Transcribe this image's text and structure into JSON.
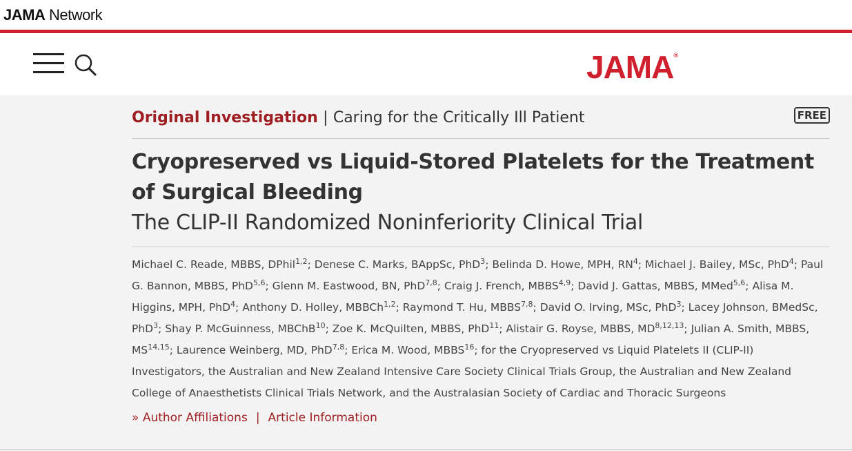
{
  "network_logo": {
    "bold": "JAMA",
    "rest": "Network"
  },
  "brand_logo": {
    "text": "JAMA",
    "mark": "®"
  },
  "article_type": {
    "section": "Original Investigation",
    "separator": "|",
    "collection": "Caring for the Critically Ill Patient",
    "badge": "FREE"
  },
  "title": "Cryopreserved vs Liquid-Stored Platelets for the Treatment of Surgical Bleeding",
  "subtitle": "The CLIP-II Randomized Noninferiority Clinical Trial",
  "author_separator": ";",
  "authors": [
    {
      "name": "Michael C. Reade, MBBS, DPhil",
      "affil": "1,2"
    },
    {
      "name": "Denese C. Marks, BAppSc, PhD",
      "affil": "3"
    },
    {
      "name": "Belinda D. Howe, MPH, RN",
      "affil": "4"
    },
    {
      "name": "Michael J. Bailey, MSc, PhD",
      "affil": "4"
    },
    {
      "name": "Paul G. Bannon, MBBS, PhD",
      "affil": "5,6"
    },
    {
      "name": "Glenn M. Eastwood, BN, PhD",
      "affil": "7,8"
    },
    {
      "name": "Craig J. French, MBBS",
      "affil": "4,9"
    },
    {
      "name": "David J. Gattas, MBBS, MMed",
      "affil": "5,6"
    },
    {
      "name": "Alisa M. Higgins, MPH, PhD",
      "affil": "4"
    },
    {
      "name": "Anthony D. Holley, MBBCh",
      "affil": "1,2"
    },
    {
      "name": "Raymond T. Hu, MBBS",
      "affil": "7,8"
    },
    {
      "name": "David O. Irving, MSc, PhD",
      "affil": "3"
    },
    {
      "name": "Lacey Johnson, BMedSc, PhD",
      "affil": "3"
    },
    {
      "name": "Shay P. McGuinness, MBChB",
      "affil": "10"
    },
    {
      "name": "Zoe K. McQuilten, MBBS, PhD",
      "affil": "11"
    },
    {
      "name": "Alistair G. Royse, MBBS, MD",
      "affil": "8,12,13"
    },
    {
      "name": "Julian A. Smith, MBBS, MS",
      "affil": "14,15"
    },
    {
      "name": "Laurence Weinberg, MD, PhD",
      "affil": "7,8"
    },
    {
      "name": "Erica M. Wood, MBBS",
      "affil": "16"
    }
  ],
  "group_authors": "for the Cryopreserved vs Liquid Platelets II (CLIP-II) Investigators, the Australian and New Zealand Intensive Care Society Clinical Trials Group, the Australian and New Zealand College of Anaesthetists Clinical Trials Network, and the Australasian Society of Cardiac and Thoracic Surgeons",
  "links": {
    "affiliations": "Author Affiliations",
    "separator": "|",
    "information": "Article Information"
  }
}
